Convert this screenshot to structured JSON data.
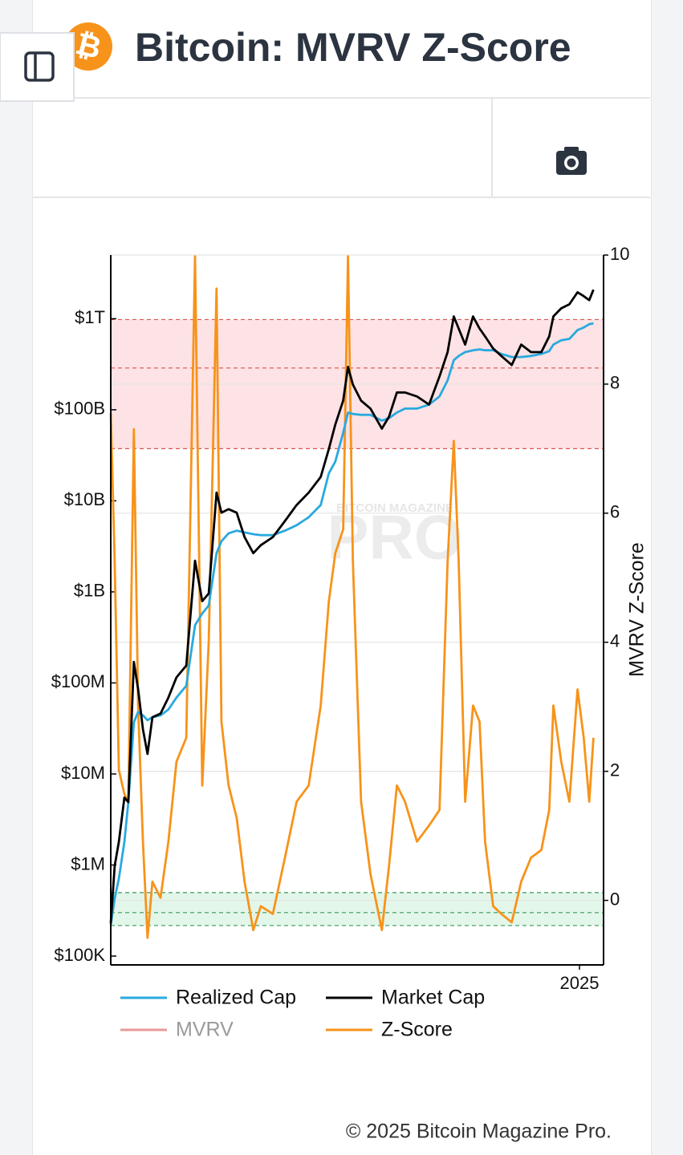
{
  "page": {
    "icon": "₿"
  },
  "chart_data": {
    "type": "line",
    "title": "Bitcoin: MVRV Z-Score",
    "y2label": "MVRV Z-Score",
    "watermark": [
      "BITCOIN MAGAZINE",
      "PRO"
    ],
    "source": "© 2025 Bitcoin Magazine Pro.",
    "legend": "bottom",
    "grid": true,
    "log_y": true,
    "xlim": [
      2010.6,
      2025.74
    ],
    "xticks": [
      2025
    ],
    "ylim": [
      80000,
      5000000000000.0
    ],
    "yticks": [
      {
        "value": 100000,
        "label": "$100K"
      },
      {
        "value": 1000000,
        "label": "$1M"
      },
      {
        "value": 10000000,
        "label": "$10M"
      },
      {
        "value": 100000000,
        "label": "$100M"
      },
      {
        "value": 1000000000,
        "label": "$1B"
      },
      {
        "value": 10000000000,
        "label": "$10B"
      },
      {
        "value": 100000000000,
        "label": "$100B"
      },
      {
        "value": 1000000000000,
        "label": "$1T"
      }
    ],
    "y2lim": [
      -1,
      10
    ],
    "y2ticks": [
      0,
      2,
      4,
      6,
      8,
      10
    ],
    "zones": [
      {
        "axis": "y2",
        "from": 7,
        "to": 9,
        "color": "#fde3e5",
        "lines": [
          9,
          8.25,
          7
        ],
        "line_color": "#d9534f"
      },
      {
        "axis": "y2",
        "from": -0.39,
        "to": 0.12,
        "color": "#e3f6ea",
        "lines": [
          0.12,
          -0.19,
          -0.39
        ],
        "line_color": "#3a9a5a"
      }
    ],
    "x": [
      2010.6,
      2010.72,
      2010.85,
      2011.02,
      2011.14,
      2011.31,
      2011.44,
      2011.59,
      2011.73,
      2011.88,
      2012.13,
      2012.37,
      2012.62,
      2012.92,
      2013.19,
      2013.41,
      2013.61,
      2013.85,
      2014.0,
      2014.22,
      2014.47,
      2014.71,
      2014.98,
      2015.21,
      2015.58,
      2015.95,
      2016.31,
      2016.68,
      2017.05,
      2017.3,
      2017.5,
      2017.74,
      2017.89,
      2018.04,
      2018.29,
      2018.58,
      2018.93,
      2019.15,
      2019.39,
      2019.64,
      2020.01,
      2020.38,
      2020.7,
      2020.95,
      2021.14,
      2021.29,
      2021.49,
      2021.73,
      2021.93,
      2022.1,
      2022.35,
      2022.6,
      2022.92,
      2023.21,
      2023.51,
      2023.83,
      2024.07,
      2024.2,
      2024.44,
      2024.69,
      2024.94,
      2025.13,
      2025.3,
      2025.43
    ],
    "series": [
      {
        "name": "Realized Cap",
        "color": "#29a9df",
        "axis": "y",
        "values": [
          220000.0,
          430000.0,
          710000.0,
          1800000.0,
          4900000.0,
          37000000.0,
          48000000.0,
          44000000.0,
          39000000.0,
          42000000.0,
          44000000.0,
          51000000.0,
          69000000.0,
          93000000.0,
          430000000.0,
          580000000.0,
          710000000.0,
          2660000000.0,
          3600000000.0,
          4400000000.0,
          4700000000.0,
          4500000000.0,
          4300000000.0,
          4200000000.0,
          4200000000.0,
          4700000000.0,
          5400000000.0,
          6600000000.0,
          9000000000.0,
          20000000000.0,
          27000000000.0,
          56000000000.0,
          93000000000.0,
          90000000000.0,
          88000000000.0,
          88000000000.0,
          76000000000.0,
          81000000000.0,
          93000000000.0,
          103000000000.0,
          103000000000.0,
          114000000000.0,
          140000000000.0,
          210000000000.0,
          350000000000.0,
          390000000000.0,
          430000000000.0,
          450000000000.0,
          460000000000.0,
          450000000000.0,
          450000000000.0,
          410000000000.0,
          380000000000.0,
          380000000000.0,
          390000000000.0,
          410000000000.0,
          440000000000.0,
          520000000000.0,
          580000000000.0,
          600000000000.0,
          750000000000.0,
          800000000000.0,
          870000000000.0,
          890000000000.0
        ]
      },
      {
        "name": "Market Cap",
        "color": "#000000",
        "axis": "y",
        "values": [
          230000.0,
          980000.0,
          1800000.0,
          5500000.0,
          4900000.0,
          170000000.0,
          85000000.0,
          31000000.0,
          16600000.0,
          42000000.0,
          46000000.0,
          69000000.0,
          115000000.0,
          155000000.0,
          2200000000.0,
          790000000.0,
          960000000.0,
          12300000000.0,
          7400000000.0,
          8100000000.0,
          7400000000.0,
          4000000000.0,
          2660000000.0,
          3260000000.0,
          4000000000.0,
          6000000000.0,
          9000000000.0,
          12300000000.0,
          18300000000.0,
          37000000000.0,
          69000000000.0,
          126000000000.0,
          296000000000.0,
          189000000000.0,
          126000000000.0,
          103000000000.0,
          62000000000.0,
          84000000000.0,
          155000000000.0,
          155000000000.0,
          140000000000.0,
          114000000000.0,
          232000000000.0,
          430000000000.0,
          1060000000000.0,
          780000000000.0,
          520000000000.0,
          1060000000000.0,
          780000000000.0,
          640000000000.0,
          470000000000.0,
          390000000000.0,
          310000000000.0,
          520000000000.0,
          430000000000.0,
          430000000000.0,
          640000000000.0,
          1060000000000.0,
          1300000000000.0,
          1440000000000.0,
          1950000000000.0,
          1770000000000.0,
          1600000000000.0,
          2080000000000.0
        ]
      },
      {
        "name": "MVRV",
        "color": "#e89a9a",
        "axis": "y",
        "hidden": true
      },
      {
        "name": "Z-Score",
        "color": "#f7931a",
        "axis": "y2",
        "values": [
          7.55,
          5.25,
          2.02,
          1.65,
          1.52,
          7.3,
          3.0,
          0.91,
          -0.58,
          0.29,
          0.04,
          0.91,
          2.15,
          2.52,
          9.98,
          1.78,
          4.01,
          9.48,
          2.77,
          1.78,
          1.28,
          0.29,
          -0.46,
          -0.09,
          -0.21,
          0.66,
          1.53,
          1.78,
          3.02,
          4.63,
          5.38,
          5.75,
          9.98,
          5.25,
          1.53,
          0.41,
          -0.46,
          0.53,
          1.78,
          1.53,
          0.91,
          1.16,
          1.4,
          5.25,
          7.12,
          5.25,
          1.53,
          3.02,
          2.77,
          0.91,
          -0.09,
          -0.21,
          -0.34,
          0.29,
          0.66,
          0.78,
          1.4,
          3.02,
          2.15,
          1.53,
          3.27,
          2.52,
          1.53,
          2.52
        ]
      }
    ]
  }
}
